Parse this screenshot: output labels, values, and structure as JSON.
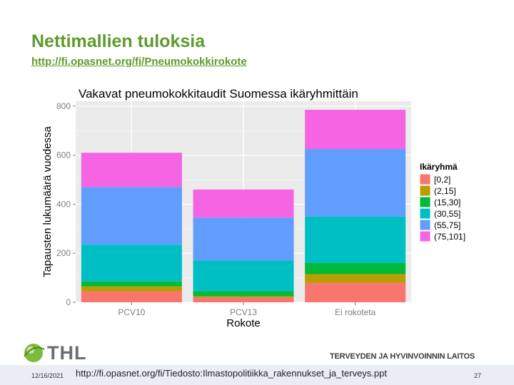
{
  "slide": {
    "title": "Nettimallien tuloksia",
    "link": "http://fi.opasnet.org/fi/Pneumokokkirokote"
  },
  "footer": {
    "date": "12/16/2021",
    "url": "http://fi.opasnet.org/fi/Tiedosto:Ilmastopolitiikka_rakennukset_ja_terveys.ppt",
    "page": "27",
    "logo_text": "THL",
    "org": "TERVEYDEN JA HYVINVOINNIN LAITOS"
  },
  "colors": {
    "panel_bg": "#ebebeb",
    "grid": "#ffffff",
    "title_green": "#5c9b2c"
  },
  "chart_data": {
    "type": "bar",
    "stacked": true,
    "title": "Vakavat pneumokokkitaudit Suomessa ikäryhmittäin",
    "xlabel": "Rokote",
    "ylabel": "Tapausten lukumäärä vuodessa",
    "categories": [
      "PCV10",
      "PCV13",
      "Ei rokoteta"
    ],
    "ylim": [
      0,
      820
    ],
    "yticks": [
      0,
      200,
      400,
      600,
      800
    ],
    "grid": true,
    "legend": {
      "title": "Ikäryhmä",
      "position": "right"
    },
    "series": [
      {
        "name": "[0,2]",
        "color": "#f8766d",
        "values": [
          45,
          20,
          80
        ]
      },
      {
        "name": "(2,15]",
        "color": "#b79f00",
        "values": [
          20,
          5,
          35
        ]
      },
      {
        "name": "(15,30]",
        "color": "#00ba38",
        "values": [
          20,
          20,
          45
        ]
      },
      {
        "name": "(30,55]",
        "color": "#00bfc4",
        "values": [
          150,
          125,
          190
        ]
      },
      {
        "name": "(55,75]",
        "color": "#619cff",
        "values": [
          235,
          175,
          275
        ]
      },
      {
        "name": "(75,101]",
        "color": "#f564e3",
        "values": [
          140,
          115,
          160
        ]
      }
    ]
  }
}
